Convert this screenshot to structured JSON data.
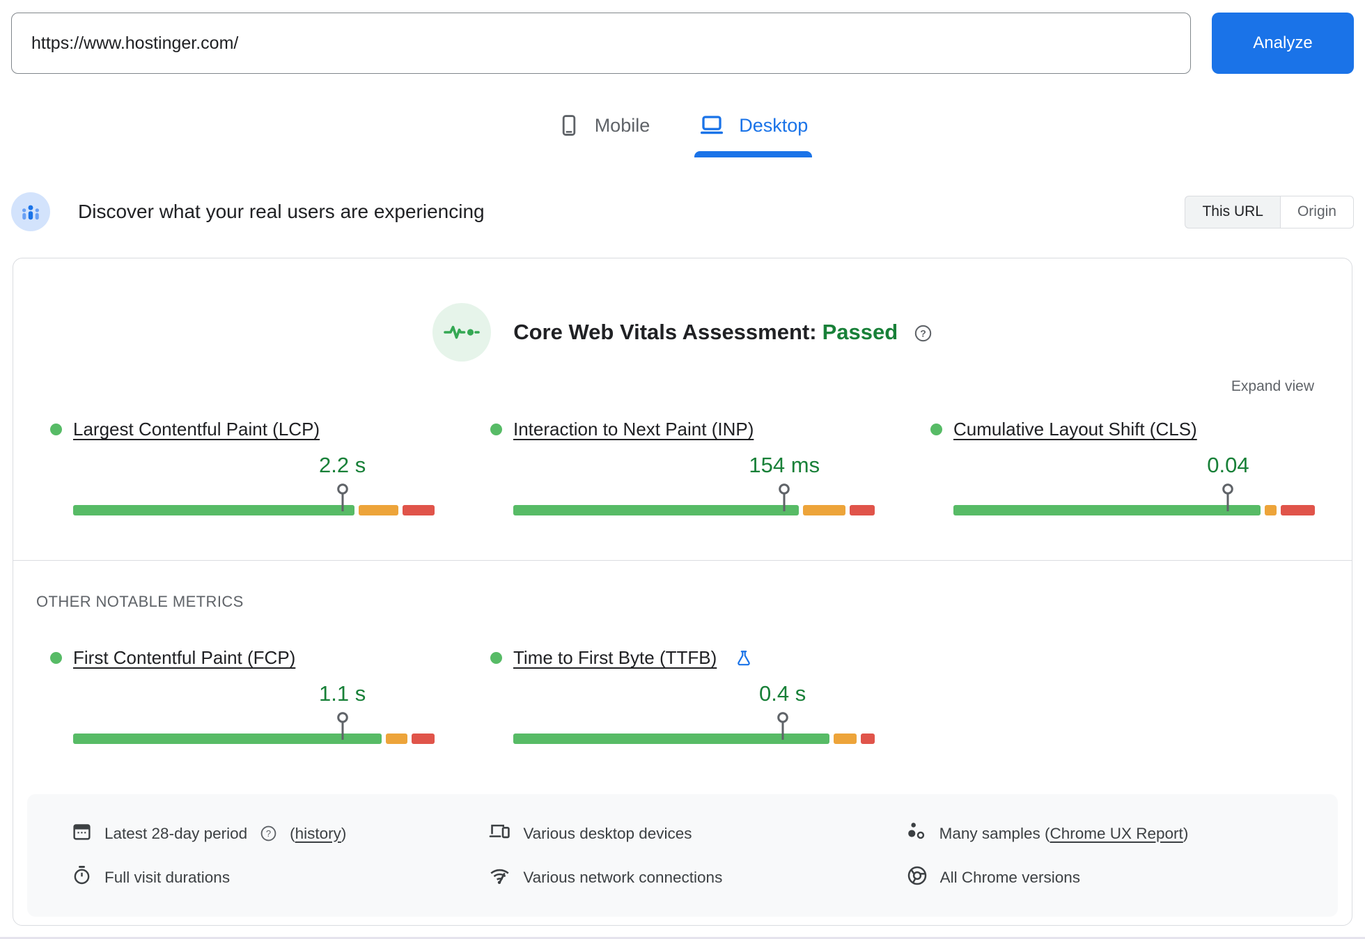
{
  "url_bar": {
    "value": "https://www.hostinger.com/",
    "analyze_label": "Analyze"
  },
  "tabs": {
    "mobile": "Mobile",
    "desktop": "Desktop"
  },
  "discover": {
    "title": "Discover what your real users are experiencing",
    "this_url": "This URL",
    "origin": "Origin"
  },
  "assessment": {
    "title": "Core Web Vitals Assessment:",
    "result": "Passed",
    "expand": "Expand view"
  },
  "sections": {
    "other_metrics": "OTHER NOTABLE METRICS"
  },
  "metrics": {
    "lcp": {
      "title": "Largest Contentful Paint (LCP)",
      "value": "2.2 s",
      "pin_pct": 74.5,
      "dist": [
        78.5,
        12,
        9.5
      ]
    },
    "inp": {
      "title": "Interaction to Next Paint (INP)",
      "value": "154 ms",
      "pin_pct": 75,
      "dist": [
        79.5,
        13,
        7.5
      ]
    },
    "cls": {
      "title": "Cumulative Layout Shift (CLS)",
      "value": "0.04",
      "pin_pct": 76,
      "dist": [
        85.5,
        4.5,
        10
      ]
    },
    "fcp": {
      "title": "First Contentful Paint (FCP)",
      "value": "1.1 s",
      "pin_pct": 74.5,
      "dist": [
        86,
        7,
        7
      ]
    },
    "ttfb": {
      "title": "Time to First Byte (TTFB)",
      "value": "0.4 s",
      "pin_pct": 74.5,
      "dist": [
        88,
        7.5,
        4.5
      ]
    }
  },
  "footer": {
    "period_text": "Latest 28-day period",
    "period_link": "history",
    "paren_open": "(",
    "paren_close": ")",
    "devices": "Various desktop devices",
    "samples_text": "Many samples",
    "samples_link": "Chrome UX Report",
    "durations": "Full visit durations",
    "network": "Various network connections",
    "chrome": "All Chrome versions"
  },
  "colors": {
    "accent": "#1a73e8",
    "good": "#57bb66",
    "needs_improvement": "#eda43a",
    "poor": "#e0544a",
    "pass_green": "#188038"
  }
}
